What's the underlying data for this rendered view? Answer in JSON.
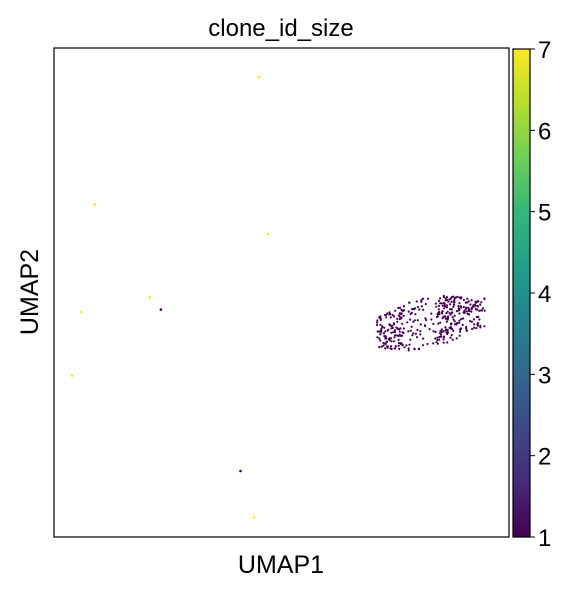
{
  "chart_data": {
    "type": "scatter",
    "title": "clone_id_size",
    "xlabel": "UMAP1",
    "ylabel": "UMAP2",
    "xticks": [],
    "yticks": [],
    "colorbar": {
      "colormap": "viridis",
      "range": [
        1,
        7
      ],
      "ticks": [
        "1",
        "2",
        "3",
        "4",
        "5",
        "6",
        "7"
      ],
      "colors": [
        "#440154",
        "#482878",
        "#3e4989",
        "#31688e",
        "#26828e",
        "#1f9e89",
        "#35b779",
        "#6ece58",
        "#b5de2b",
        "#fde725"
      ]
    },
    "points_size_7": [
      {
        "x": 0.45,
        "y": 0.94
      },
      {
        "x": 0.09,
        "y": 0.68
      },
      {
        "x": 0.47,
        "y": 0.62
      },
      {
        "x": 0.21,
        "y": 0.49
      },
      {
        "x": 0.06,
        "y": 0.46
      },
      {
        "x": 0.04,
        "y": 0.33
      },
      {
        "x": 0.44,
        "y": 0.04
      }
    ],
    "points_size_1_isolated": [
      {
        "x": 0.235,
        "y": 0.465
      },
      {
        "x": 0.41,
        "y": 0.135
      }
    ],
    "cluster_size_1": {
      "center_x": 0.8,
      "center_y": 0.44,
      "x_range": [
        0.71,
        0.95
      ],
      "y_range": [
        0.35,
        0.52
      ],
      "approx_points": 400
    }
  }
}
